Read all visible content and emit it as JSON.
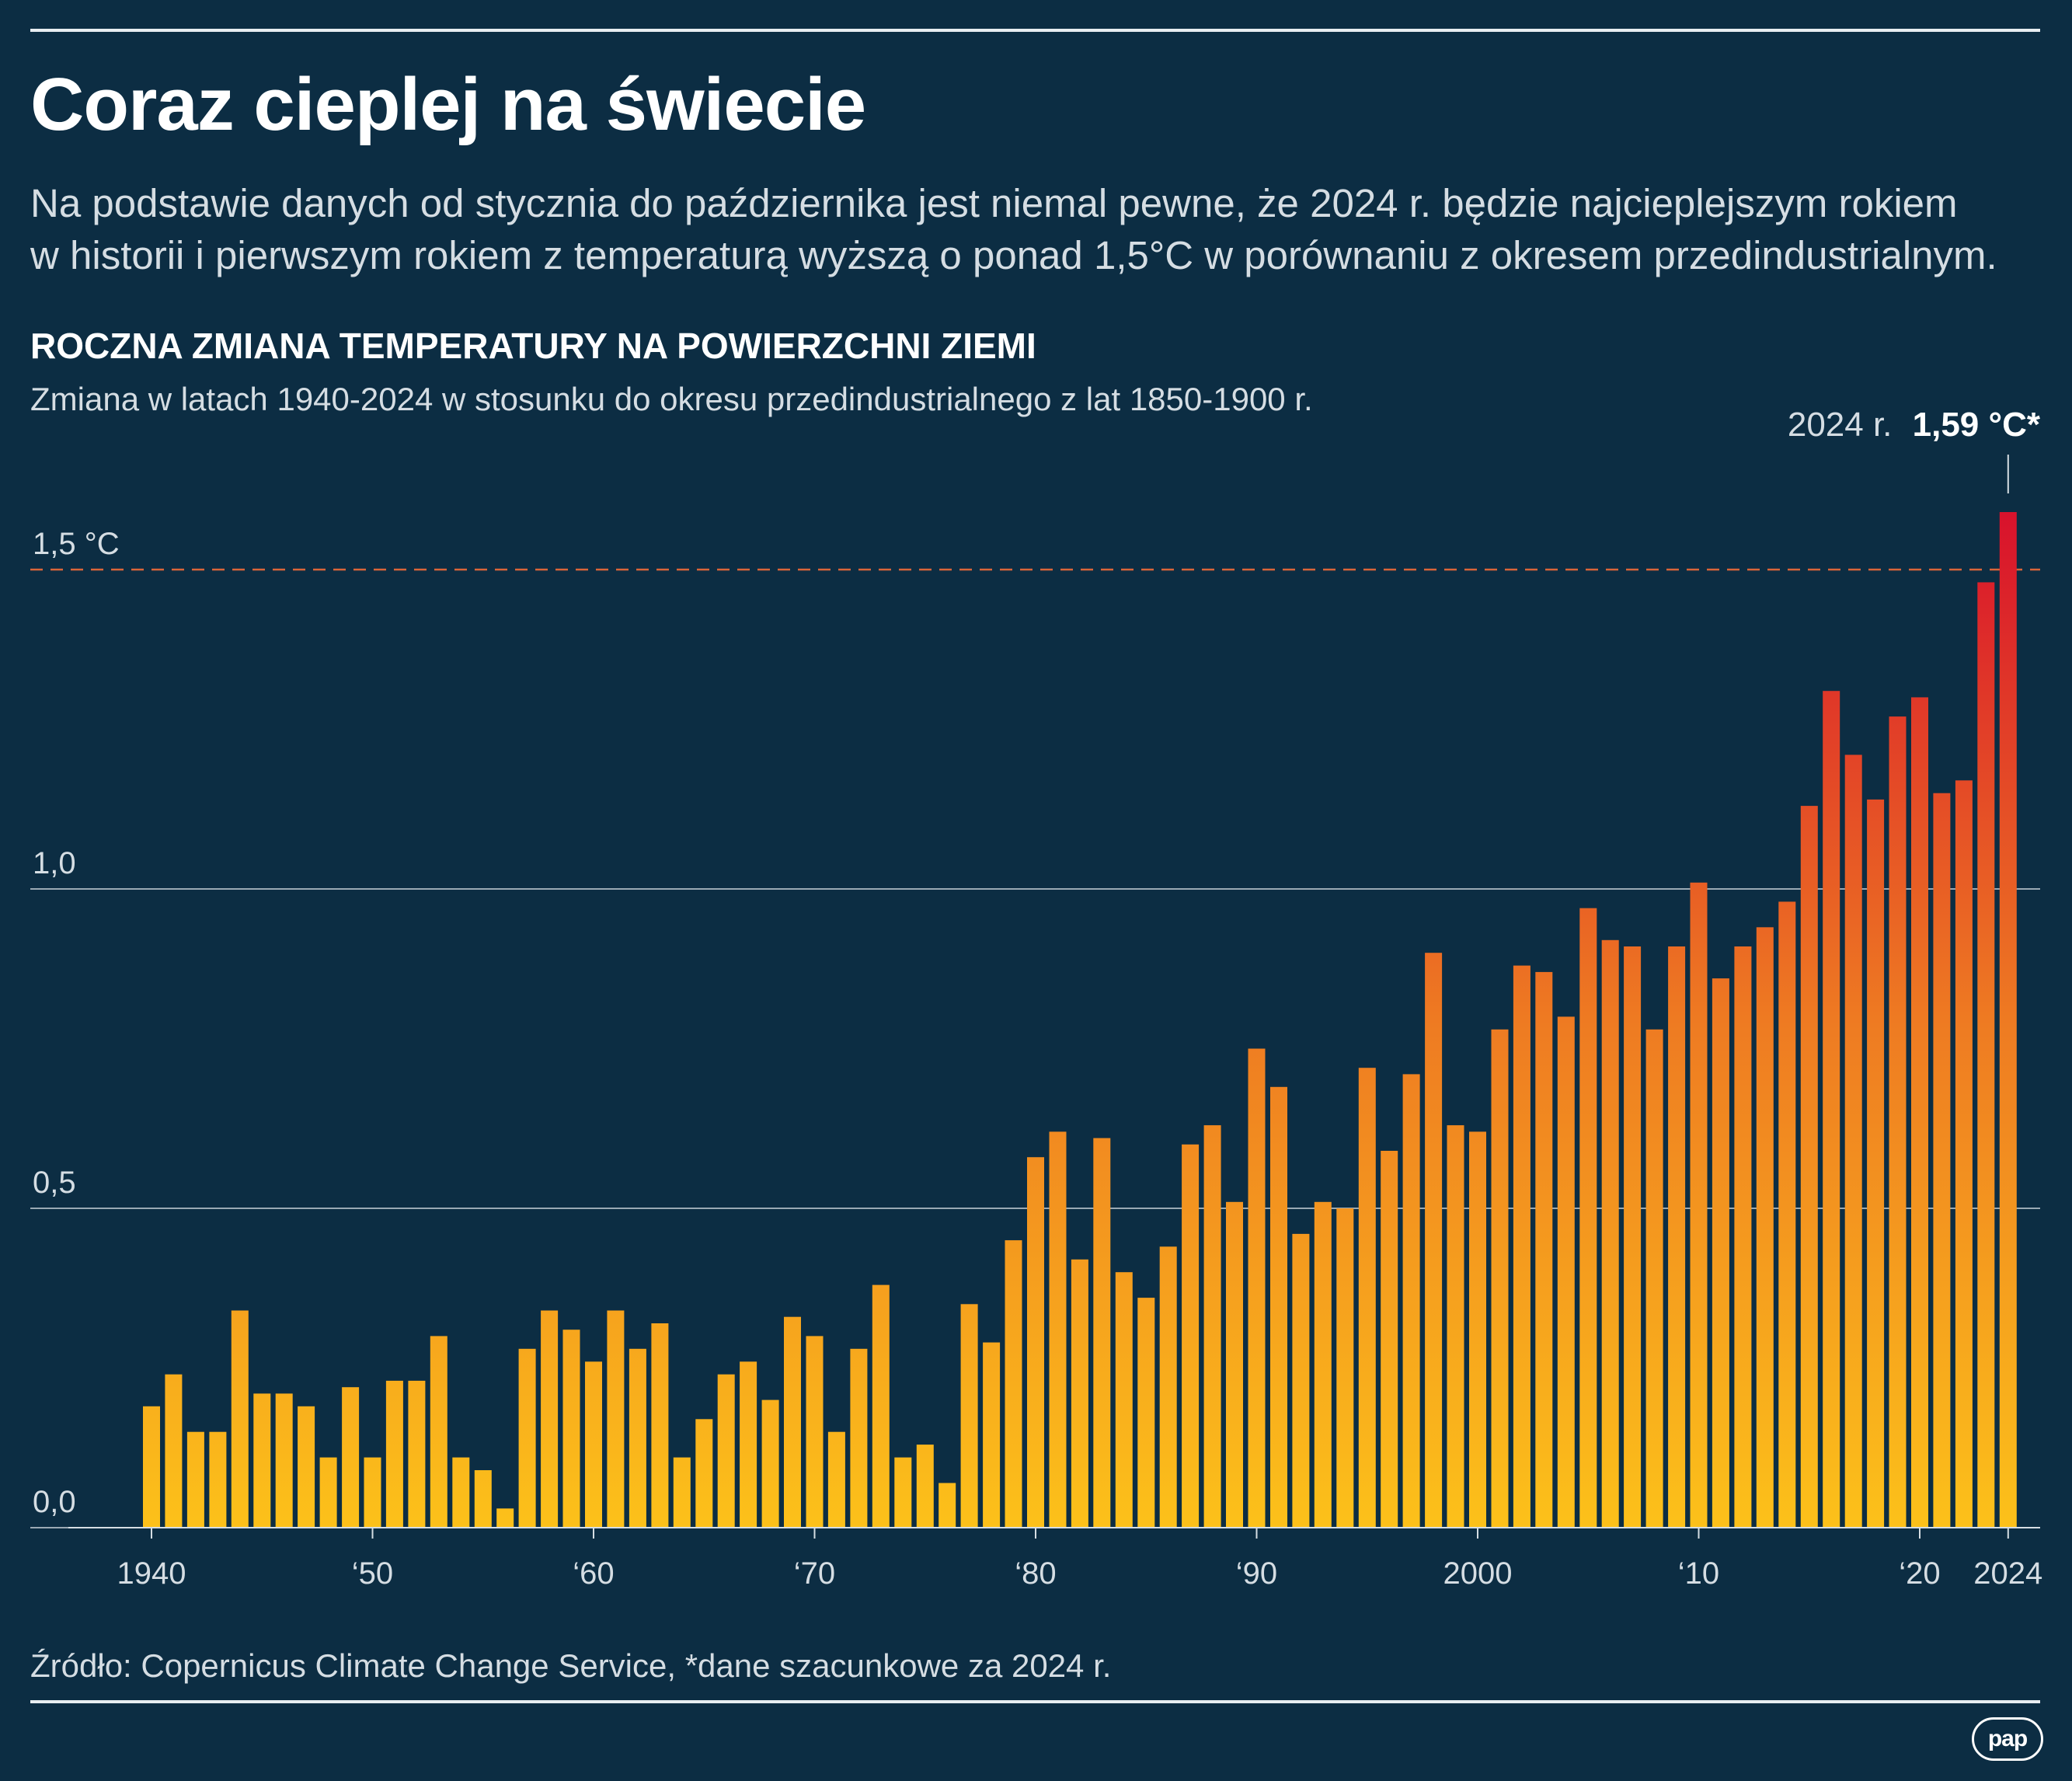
{
  "header": {
    "title": "Coraz cieplej na świecie",
    "subtitle_line1": "Na podstawie danych od stycznia do października jest niemal pewne, że 2024 r. będzie najcieplejszym rokiem",
    "subtitle_line2": "w historii i pierwszym rokiem z temperaturą wyższą o ponad 1,5°C w porównaniu z okresem przedindustrialnym."
  },
  "footer": {
    "source": "Źródło: Copernicus Climate Change Service, *dane szacunkowe za 2024 r.",
    "logo": "pap"
  },
  "colors": {
    "background": "#0c2d43",
    "bar_low": "#fcc11a",
    "bar_mid": "#ee7a22",
    "bar_high": "#d8112c",
    "threshold_line": "#d9653a",
    "grid": "#9aa9b4"
  },
  "chart_data": {
    "type": "bar",
    "title": "ROCZNA ZMIANA TEMPERATURY NA POWIERZCHNI ZIEMI",
    "subtitle": "Zmiana w latach 1940-2024 w stosunku do okresu przedindustrialnego z lat 1850-1900 r.",
    "xlabel": "",
    "ylabel": "",
    "ylim": [
      0,
      1.6
    ],
    "grid": true,
    "y_ticks": [
      {
        "value": 0.0,
        "label": "0,0"
      },
      {
        "value": 0.5,
        "label": "0,5"
      },
      {
        "value": 1.0,
        "label": "1,0"
      },
      {
        "value": 1.5,
        "label": "1,5 °C"
      }
    ],
    "threshold": {
      "value": 1.5,
      "style": "dashed"
    },
    "x_ticks": [
      {
        "year": 1940,
        "label": "1940"
      },
      {
        "year": 1950,
        "label": "‘50"
      },
      {
        "year": 1960,
        "label": "‘60"
      },
      {
        "year": 1970,
        "label": "‘70"
      },
      {
        "year": 1980,
        "label": "‘80"
      },
      {
        "year": 1990,
        "label": "‘90"
      },
      {
        "year": 2000,
        "label": "2000"
      },
      {
        "year": 2010,
        "label": "‘10"
      },
      {
        "year": 2020,
        "label": "‘20"
      },
      {
        "year": 2024,
        "label": "2024"
      }
    ],
    "annotation": {
      "year": 2024,
      "prefix": "2024 r.",
      "value_label": "1,59 °C*"
    },
    "categories": [
      1940,
      1941,
      1942,
      1943,
      1944,
      1945,
      1946,
      1947,
      1948,
      1949,
      1950,
      1951,
      1952,
      1953,
      1954,
      1955,
      1956,
      1957,
      1958,
      1959,
      1960,
      1961,
      1962,
      1963,
      1964,
      1965,
      1966,
      1967,
      1968,
      1969,
      1970,
      1971,
      1972,
      1973,
      1974,
      1975,
      1976,
      1977,
      1978,
      1979,
      1980,
      1981,
      1982,
      1983,
      1984,
      1985,
      1986,
      1987,
      1988,
      1989,
      1990,
      1991,
      1992,
      1993,
      1994,
      1995,
      1996,
      1997,
      1998,
      1999,
      2000,
      2001,
      2002,
      2003,
      2004,
      2005,
      2006,
      2007,
      2008,
      2009,
      2010,
      2011,
      2012,
      2013,
      2014,
      2015,
      2016,
      2017,
      2018,
      2019,
      2020,
      2021,
      2022,
      2023,
      2024
    ],
    "values": [
      0.19,
      0.24,
      0.15,
      0.15,
      0.34,
      0.21,
      0.21,
      0.19,
      0.11,
      0.22,
      0.11,
      0.23,
      0.23,
      0.3,
      0.11,
      0.09,
      0.03,
      0.28,
      0.34,
      0.31,
      0.26,
      0.34,
      0.28,
      0.32,
      0.11,
      0.17,
      0.24,
      0.26,
      0.2,
      0.33,
      0.3,
      0.15,
      0.28,
      0.38,
      0.11,
      0.13,
      0.07,
      0.35,
      0.29,
      0.45,
      0.58,
      0.62,
      0.42,
      0.61,
      0.4,
      0.36,
      0.44,
      0.6,
      0.63,
      0.51,
      0.75,
      0.69,
      0.46,
      0.51,
      0.5,
      0.72,
      0.59,
      0.71,
      0.9,
      0.63,
      0.62,
      0.78,
      0.88,
      0.87,
      0.8,
      0.97,
      0.92,
      0.91,
      0.78,
      0.91,
      1.01,
      0.86,
      0.91,
      0.94,
      0.98,
      1.13,
      1.31,
      1.21,
      1.14,
      1.27,
      1.3,
      1.15,
      1.17,
      1.48,
      1.59
    ]
  }
}
